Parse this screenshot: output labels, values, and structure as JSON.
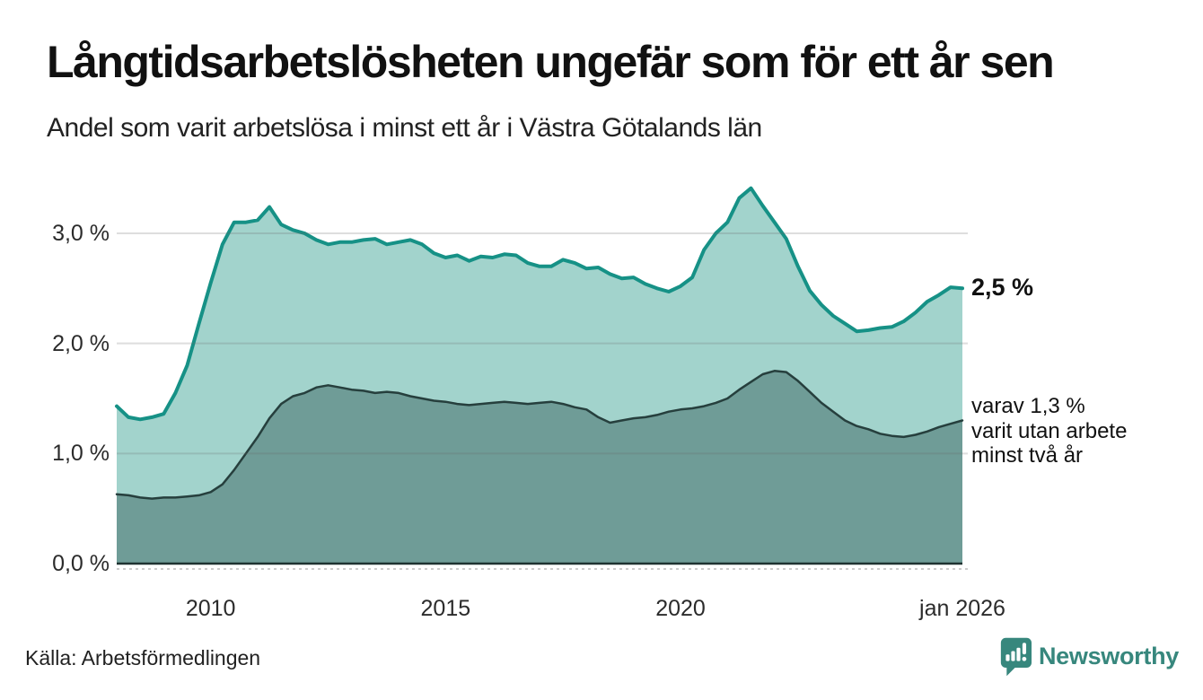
{
  "header": {
    "title": "Långtidsarbetslösheten ungefär som för ett år sen",
    "subtitle": "Andel som varit arbetslösa i minst ett år i Västra Götalands län"
  },
  "annotations": {
    "total_end_label": "2,5 %",
    "subset_line1": "varav 1,3 %",
    "subset_line2": "varit utan arbete",
    "subset_line3": "minst två år"
  },
  "footer": {
    "source": "Källa: Arbetsförmedlingen",
    "brand": "Newsworthy"
  },
  "colors": {
    "total_line": "#169186",
    "total_fill": "#a2d3cc",
    "subset_line": "#263f3d",
    "subset_fill": "#6f9c97",
    "grid": "#6b6b6b",
    "axis": "#1f3331",
    "zero_dash": "#bbbbbb",
    "brand_teal": "#37877d",
    "text_dark": "#111111"
  },
  "chart_data": {
    "type": "area",
    "title": "Långtidsarbetslösheten ungefär som för ett år sen",
    "subtitle": "Andel som varit arbetslösa i minst ett år i Västra Götalands län",
    "unit": "%",
    "grid": true,
    "legend_position": "right-annotations",
    "ylim": [
      0,
      3.5
    ],
    "x_range": [
      2008,
      2026
    ],
    "x_step": 0.25,
    "y_ticks": [
      {
        "label": "0,0 %",
        "value": 0
      },
      {
        "label": "1,0 %",
        "value": 1
      },
      {
        "label": "2,0 %",
        "value": 2
      },
      {
        "label": "3,0 %",
        "value": 3
      }
    ],
    "x_ticks": [
      {
        "label": "2010",
        "x": 2010
      },
      {
        "label": "2015",
        "x": 2015
      },
      {
        "label": "2020",
        "x": 2020
      },
      {
        "label": "jan 2026",
        "x": 2026
      }
    ],
    "series": [
      {
        "name": "Andel arbetslösa minst ett år",
        "end_label": "2,5 %",
        "end_value": 2.5,
        "values": [
          1.43,
          1.33,
          1.31,
          1.33,
          1.36,
          1.55,
          1.8,
          2.18,
          2.55,
          2.9,
          3.1,
          3.1,
          3.12,
          3.24,
          3.08,
          3.03,
          3.0,
          2.94,
          2.9,
          2.92,
          2.92,
          2.94,
          2.95,
          2.9,
          2.92,
          2.94,
          2.9,
          2.82,
          2.78,
          2.8,
          2.75,
          2.79,
          2.78,
          2.81,
          2.8,
          2.73,
          2.7,
          2.7,
          2.76,
          2.73,
          2.68,
          2.69,
          2.63,
          2.59,
          2.6,
          2.54,
          2.5,
          2.47,
          2.52,
          2.6,
          2.85,
          3.0,
          3.1,
          3.32,
          3.41,
          3.25,
          3.1,
          2.95,
          2.7,
          2.48,
          2.35,
          2.25,
          2.18,
          2.11,
          2.12,
          2.14,
          2.15,
          2.2,
          2.28,
          2.38,
          2.44,
          2.51,
          2.5
        ]
      },
      {
        "name": "varav utan arbete minst två år",
        "end_label": "varav 1,3 % varit utan arbete minst två år",
        "end_value": 1.3,
        "values": [
          0.63,
          0.62,
          0.6,
          0.59,
          0.6,
          0.6,
          0.61,
          0.62,
          0.65,
          0.72,
          0.85,
          1.0,
          1.15,
          1.32,
          1.45,
          1.52,
          1.55,
          1.6,
          1.62,
          1.6,
          1.58,
          1.57,
          1.55,
          1.56,
          1.55,
          1.52,
          1.5,
          1.48,
          1.47,
          1.45,
          1.44,
          1.45,
          1.46,
          1.47,
          1.46,
          1.45,
          1.46,
          1.47,
          1.45,
          1.42,
          1.4,
          1.33,
          1.28,
          1.3,
          1.32,
          1.33,
          1.35,
          1.38,
          1.4,
          1.41,
          1.43,
          1.46,
          1.5,
          1.58,
          1.65,
          1.72,
          1.75,
          1.74,
          1.66,
          1.56,
          1.46,
          1.38,
          1.3,
          1.25,
          1.22,
          1.18,
          1.16,
          1.15,
          1.17,
          1.2,
          1.24,
          1.27,
          1.3
        ]
      }
    ]
  }
}
